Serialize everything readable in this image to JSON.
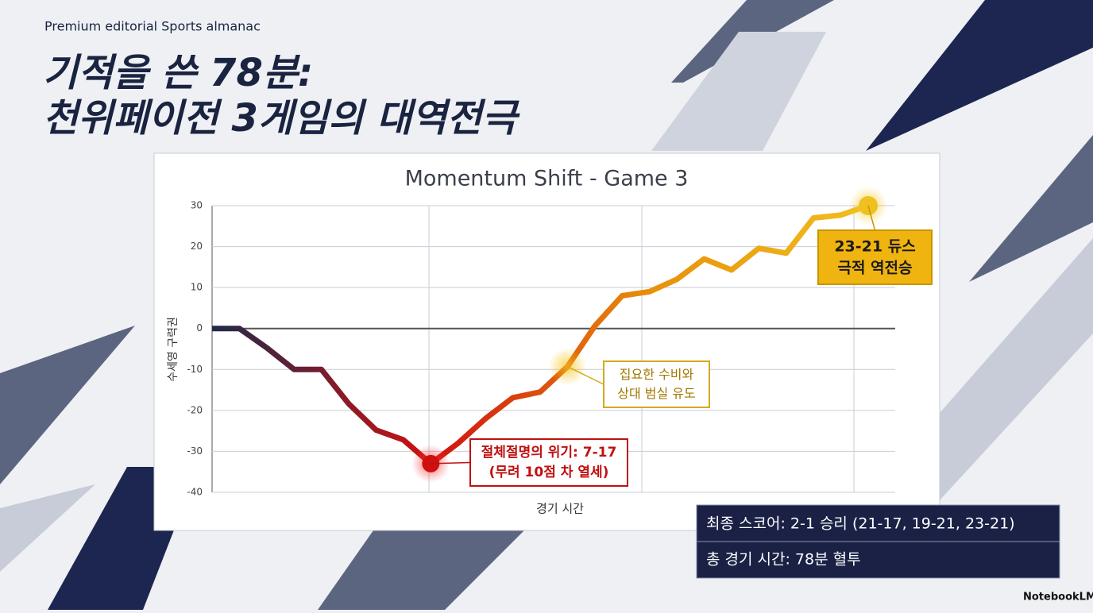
{
  "header": {
    "kicker": "Premium editorial Sports almanac",
    "title_lines": [
      "기적을 쓴 78분:",
      "천위페이전 3게임의 대역전극"
    ]
  },
  "chart_data": {
    "type": "line",
    "title": "Momentum Shift - Game 3",
    "x_label": "경기 시간",
    "y_label": "수세영 구력권",
    "values": [
      0,
      0,
      -4.7,
      -10,
      -10,
      -18.4,
      -24.8,
      -27.2,
      -33,
      -28,
      -22,
      -16.9,
      -15.5,
      -9.3,
      0.6,
      8,
      9,
      12,
      17,
      14.3,
      19.6,
      18.4,
      27,
      27.7,
      30
    ],
    "gradient": [
      "#1e2a4a",
      "#d01010",
      "#e8900a",
      "#f0c020"
    ],
    "ylim": [
      -40,
      30
    ],
    "yticks": [
      -40,
      -30,
      -20,
      -10,
      0,
      10,
      20,
      30
    ],
    "grid": true,
    "annotations": [
      "절체절명의 위기: 7-17\n(무려 10점 차 열세)",
      "집요한 수비와\n상대 범실 유도",
      "23-21 듀스\n극적 역전승"
    ]
  },
  "summary": [
    "최종 스코어: 2-1 승리 (21-17, 19-21, 23-21)",
    "총 경기 시간: 78분 혈투"
  ],
  "footer": "NotebookLM"
}
